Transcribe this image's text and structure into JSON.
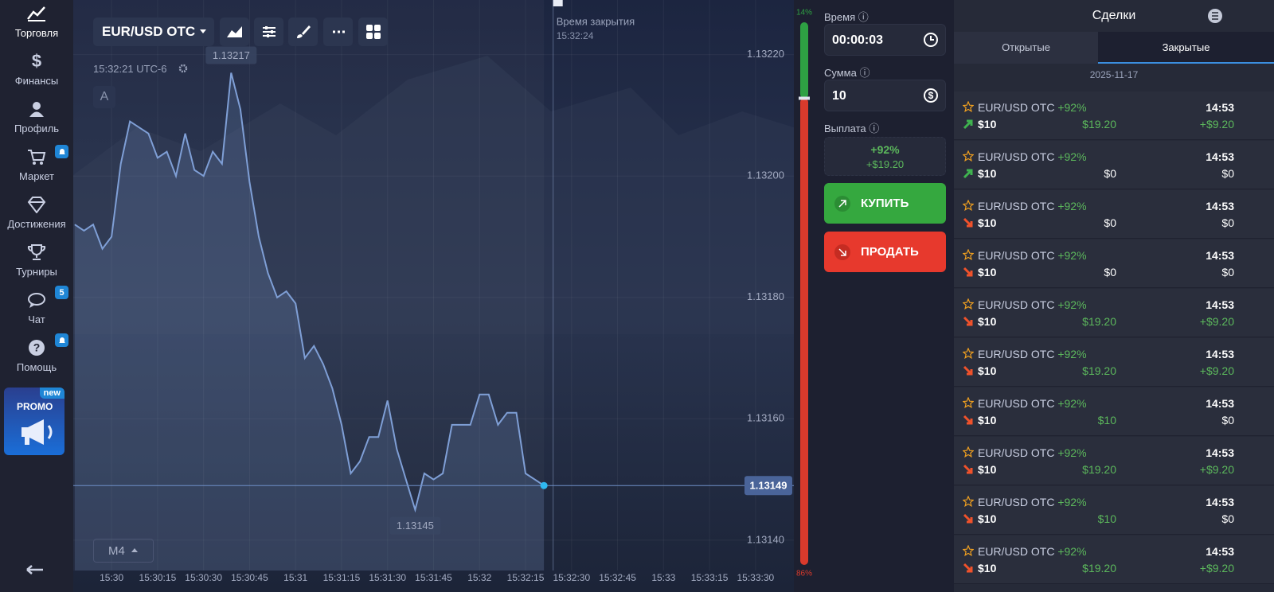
{
  "sidebar": {
    "items": [
      "Торговля",
      "Финансы",
      "Профиль",
      "Маркет",
      "Достижения",
      "Турниры",
      "Чат",
      "Помощь"
    ],
    "chat_badge": "5",
    "promo": "PROMO",
    "promo_badge": "new"
  },
  "toolbar": {
    "pair": "EUR/USD OTC",
    "clock": "15:32:21 UTC-6",
    "mode": "A",
    "timeframe": "M4"
  },
  "chart_data": {
    "type": "line",
    "color": "#7f9fd6",
    "x": [
      55788,
      55791,
      55794,
      55797,
      55800,
      55803,
      55806,
      55809,
      55812,
      55815,
      55818,
      55821,
      55824,
      55827,
      55830,
      55833,
      55836,
      55839,
      55842,
      55845,
      55848,
      55851,
      55854,
      55857,
      55860,
      55863,
      55866,
      55869,
      55872,
      55875,
      55878,
      55881,
      55884,
      55887,
      55890,
      55893,
      55896,
      55899,
      55902,
      55905,
      55908,
      55911,
      55914,
      55917,
      55920,
      55923,
      55926,
      55929,
      55932,
      55935,
      55938,
      55941
    ],
    "values": [
      1.13192,
      1.13191,
      1.13192,
      1.13188,
      1.1319,
      1.13202,
      1.13209,
      1.13208,
      1.13207,
      1.13203,
      1.13204,
      1.132,
      1.13207,
      1.13201,
      1.132,
      1.13204,
      1.13202,
      1.13217,
      1.13211,
      1.13199,
      1.1319,
      1.13184,
      1.1318,
      1.13181,
      1.13179,
      1.1317,
      1.13172,
      1.13169,
      1.13165,
      1.13159,
      1.13151,
      1.13153,
      1.13157,
      1.13157,
      1.13163,
      1.13155,
      1.1315,
      1.13145,
      1.13151,
      1.1315,
      1.13151,
      1.13159,
      1.13159,
      1.13159,
      1.13164,
      1.13164,
      1.13159,
      1.13161,
      1.13161,
      1.13151,
      1.1315,
      1.13149
    ],
    "xlim": [
      55787.5,
      56022.5
    ],
    "ylim": [
      1.13135,
      1.13229
    ],
    "xticks": [
      {
        "value": 55800,
        "label": "15:30"
      },
      {
        "value": 55815,
        "label": "15:30:15"
      },
      {
        "value": 55830,
        "label": "15:30:30"
      },
      {
        "value": 55845,
        "label": "15:30:45"
      },
      {
        "value": 55860,
        "label": "15:31"
      },
      {
        "value": 55875,
        "label": "15:31:15"
      },
      {
        "value": 55890,
        "label": "15:31:30"
      },
      {
        "value": 55905,
        "label": "15:31:45"
      },
      {
        "value": 55920,
        "label": "15:32"
      },
      {
        "value": 55935,
        "label": "15:32:15"
      },
      {
        "value": 55950,
        "label": "15:32:30"
      },
      {
        "value": 55965,
        "label": "15:32:45"
      },
      {
        "value": 55980,
        "label": "15:33"
      },
      {
        "value": 55995,
        "label": "15:33:15"
      },
      {
        "value": 56010,
        "label": "15:33:30"
      }
    ],
    "yticks": [
      {
        "value": 1.1314,
        "label": "1.13140"
      },
      {
        "value": 1.1316,
        "label": "1.13160"
      },
      {
        "value": 1.1318,
        "label": "1.13180"
      },
      {
        "value": 1.132,
        "label": "1.13200"
      },
      {
        "value": 1.1322,
        "label": "1.13220"
      }
    ],
    "grid": true,
    "max": 1.13217,
    "min": 1.13145,
    "current": 1.13149,
    "expiry_title": "Время закрытия",
    "expiry": {
      "value": 55944,
      "label": "15:32:24"
    }
  },
  "sentiment": {
    "values": [
      14,
      86
    ],
    "value_labels": [
      "14%",
      "86%"
    ],
    "colors": [
      "#2ea043",
      "#d93a2c"
    ]
  },
  "trade": {
    "time_label": "Время",
    "time": "00:00:03",
    "amount_label": "Сумма",
    "amount": "10",
    "payout_label": "Выплата",
    "payout_percent": "+92%",
    "payout_amount": "+$19.20",
    "buy": "КУПИТЬ",
    "sell": "ПРОДАТЬ"
  },
  "deals": {
    "title": "Сделки",
    "tabs": [
      "Открытые",
      "Закрытые"
    ],
    "active_tab": 1,
    "date": "2025-11-17",
    "rows": [
      {
        "pair": "EUR/USD OTC",
        "percent": "+92%",
        "time": "14:53",
        "direction": "up",
        "amount": "$10",
        "payout": "$19.20",
        "profit": "+$9.20",
        "payout_color": "#5cb85c",
        "profit_color": "#5cb85c"
      },
      {
        "pair": "EUR/USD OTC",
        "percent": "+92%",
        "time": "14:53",
        "direction": "up",
        "amount": "$10",
        "payout": "$0",
        "profit": "$0",
        "payout_color": "#ffffff",
        "profit_color": "#ffffff"
      },
      {
        "pair": "EUR/USD OTC",
        "percent": "+92%",
        "time": "14:53",
        "direction": "down",
        "amount": "$10",
        "payout": "$0",
        "profit": "$0",
        "payout_color": "#ffffff",
        "profit_color": "#ffffff"
      },
      {
        "pair": "EUR/USD OTC",
        "percent": "+92%",
        "time": "14:53",
        "direction": "down",
        "amount": "$10",
        "payout": "$0",
        "profit": "$0",
        "payout_color": "#ffffff",
        "profit_color": "#ffffff"
      },
      {
        "pair": "EUR/USD OTC",
        "percent": "+92%",
        "time": "14:53",
        "direction": "down",
        "amount": "$10",
        "payout": "$19.20",
        "profit": "+$9.20",
        "payout_color": "#5cb85c",
        "profit_color": "#5cb85c"
      },
      {
        "pair": "EUR/USD OTC",
        "percent": "+92%",
        "time": "14:53",
        "direction": "down",
        "amount": "$10",
        "payout": "$19.20",
        "profit": "+$9.20",
        "payout_color": "#5cb85c",
        "profit_color": "#5cb85c"
      },
      {
        "pair": "EUR/USD OTC",
        "percent": "+92%",
        "time": "14:53",
        "direction": "down",
        "amount": "$10",
        "payout": "$10",
        "profit": "$0",
        "payout_color": "#5cb85c",
        "profit_color": "#ffffff"
      },
      {
        "pair": "EUR/USD OTC",
        "percent": "+92%",
        "time": "14:53",
        "direction": "down",
        "amount": "$10",
        "payout": "$19.20",
        "profit": "+$9.20",
        "payout_color": "#5cb85c",
        "profit_color": "#5cb85c"
      },
      {
        "pair": "EUR/USD OTC",
        "percent": "+92%",
        "time": "14:53",
        "direction": "down",
        "amount": "$10",
        "payout": "$10",
        "profit": "$0",
        "payout_color": "#5cb85c",
        "profit_color": "#ffffff"
      },
      {
        "pair": "EUR/USD OTC",
        "percent": "+92%",
        "time": "14:53",
        "direction": "down",
        "amount": "$10",
        "payout": "$19.20",
        "profit": "+$9.20",
        "payout_color": "#5cb85c",
        "profit_color": "#5cb85c"
      }
    ]
  }
}
